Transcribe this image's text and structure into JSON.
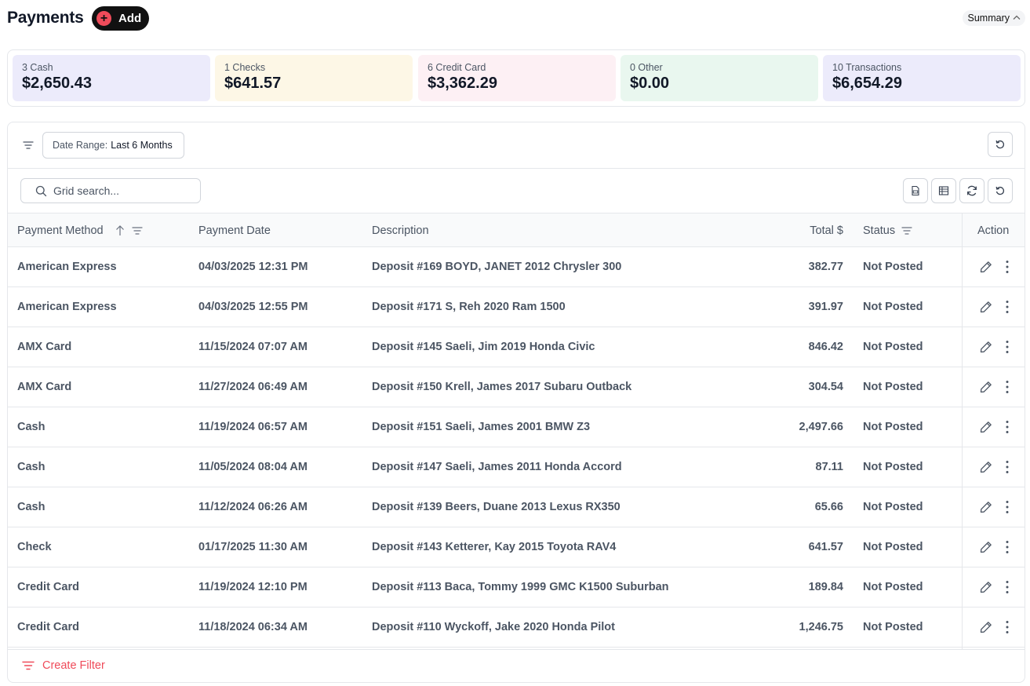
{
  "header": {
    "title": "Payments",
    "add_label": "Add",
    "summary_label": "Summary"
  },
  "summary": [
    {
      "count_label": "3 Cash",
      "amount": "$2,650.43",
      "color": "#ecebfb"
    },
    {
      "count_label": "1 Checks",
      "amount": "$641.57",
      "color": "#fdf7e6"
    },
    {
      "count_label": "6 Credit Card",
      "amount": "$3,362.29",
      "color": "#fdf0f4"
    },
    {
      "count_label": "0 Other",
      "amount": "$0.00",
      "color": "#e9f7ef"
    },
    {
      "count_label": "10 Transactions",
      "amount": "$6,654.29",
      "color": "#ecebfb"
    }
  ],
  "filters": {
    "date_range_key": "Date Range:",
    "date_range_value": "Last 6 Months"
  },
  "search": {
    "placeholder": "Grid search..."
  },
  "table": {
    "columns": {
      "method": "Payment Method",
      "date": "Payment Date",
      "description": "Description",
      "total": "Total $",
      "status": "Status",
      "action": "Action"
    },
    "rows": [
      {
        "method": "American Express",
        "date": "04/03/2025 12:31 PM",
        "description": "Deposit #169 BOYD, JANET 2012 Chrysler 300",
        "total": "382.77",
        "status": "Not Posted"
      },
      {
        "method": "American Express",
        "date": "04/03/2025 12:55 PM",
        "description": "Deposit #171 S, Reh 2020 Ram 1500",
        "total": "391.97",
        "status": "Not Posted"
      },
      {
        "method": "AMX Card",
        "date": "11/15/2024 07:07 AM",
        "description": "Deposit #145 Saeli, Jim 2019 Honda Civic",
        "total": "846.42",
        "status": "Not Posted"
      },
      {
        "method": "AMX Card",
        "date": "11/27/2024 06:49 AM",
        "description": "Deposit #150 Krell, James 2017 Subaru Outback",
        "total": "304.54",
        "status": "Not Posted"
      },
      {
        "method": "Cash",
        "date": "11/19/2024 06:57 AM",
        "description": "Deposit #151 Saeli, James 2001 BMW Z3",
        "total": "2,497.66",
        "status": "Not Posted"
      },
      {
        "method": "Cash",
        "date": "11/05/2024 08:04 AM",
        "description": "Deposit #147 Saeli, James 2011 Honda Accord",
        "total": "87.11",
        "status": "Not Posted"
      },
      {
        "method": "Cash",
        "date": "11/12/2024 06:26 AM",
        "description": "Deposit #139 Beers, Duane 2013 Lexus RX350",
        "total": "65.66",
        "status": "Not Posted"
      },
      {
        "method": "Check",
        "date": "01/17/2025 11:30 AM",
        "description": "Deposit #143 Ketterer, Kay 2015 Toyota RAV4",
        "total": "641.57",
        "status": "Not Posted"
      },
      {
        "method": "Credit Card",
        "date": "11/19/2024 12:10 PM",
        "description": "Deposit #113 Baca, Tommy 1999 GMC K1500 Suburban",
        "total": "189.84",
        "status": "Not Posted"
      },
      {
        "method": "Credit Card",
        "date": "11/18/2024 06:34 AM",
        "description": "Deposit #110 Wyckoff, Jake 2020 Honda Pilot",
        "total": "1,246.75",
        "status": "Not Posted"
      }
    ]
  },
  "footer": {
    "create_filter_label": "Create Filter"
  },
  "colors": {
    "accent": "#ef4b5a",
    "dark_button": "#111111"
  }
}
